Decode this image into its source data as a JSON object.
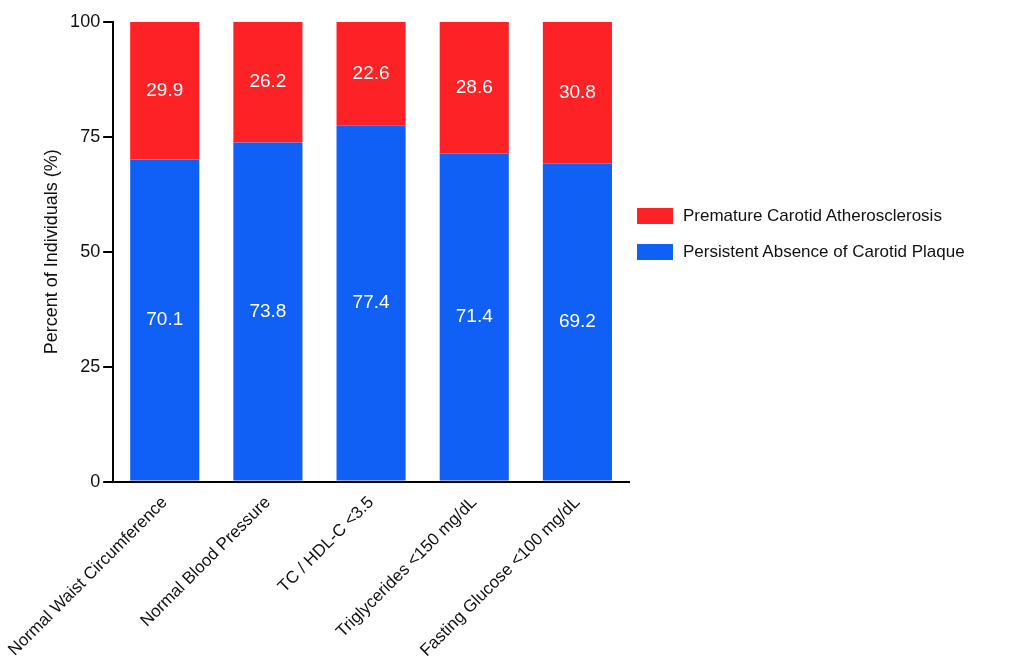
{
  "chart_data": {
    "type": "bar",
    "stacked": true,
    "ylabel": "Percent of Individuals (%)",
    "categories": [
      "Normal Waist Circumference",
      "Normal Blood Pressure",
      "TC / HDL-C <3.5",
      "Triglycerides <150 mg/dL",
      "Fasting Glucose <100 mg/dL"
    ],
    "series": [
      {
        "name": "Persistent Absence of Carotid Plaque",
        "color": "#1060f5",
        "values": [
          70.1,
          73.8,
          77.4,
          71.4,
          69.2
        ]
      },
      {
        "name": "Premature Carotid Atherosclerosis",
        "color": "#fc2226",
        "values": [
          29.9,
          26.2,
          22.6,
          28.6,
          30.8
        ]
      }
    ],
    "ylim": [
      0,
      100
    ],
    "yticks": [
      0,
      25,
      50,
      75,
      100
    ],
    "grid": false,
    "legend": "right",
    "data_labels": true
  }
}
